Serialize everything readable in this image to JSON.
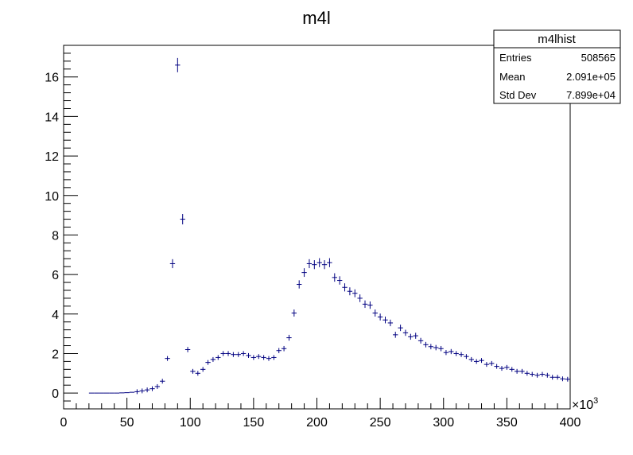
{
  "chart_data": {
    "type": "scatter",
    "title": "m4l",
    "xlabel": "",
    "ylabel": "",
    "x_multiplier_label": "×10",
    "x_multiplier_exponent": "3",
    "xlim": [
      0,
      400
    ],
    "ylim": [
      -0.8,
      17.6
    ],
    "x_ticks": [
      0,
      50,
      100,
      150,
      200,
      250,
      300,
      350,
      400
    ],
    "y_ticks": [
      0,
      2,
      4,
      6,
      8,
      10,
      12,
      14,
      16
    ],
    "bin_width": 4,
    "marker_color": "#000080",
    "grid": false,
    "legend": "none",
    "stats_box": {
      "title": "m4lhist",
      "rows": [
        {
          "label": "Entries",
          "value": "508565"
        },
        {
          "label": "Mean",
          "value": "2.091e+05"
        },
        {
          "label": "Std Dev",
          "value": "7.899e+04"
        }
      ],
      "placement": "top-right"
    },
    "series": [
      {
        "x": [
          22,
          26,
          30,
          34,
          38,
          42,
          46,
          50,
          54,
          58,
          62,
          66,
          70,
          74,
          78,
          82,
          86,
          90,
          94,
          98,
          102,
          106,
          110,
          114,
          118,
          122,
          126,
          130,
          134,
          138,
          142,
          146,
          150,
          154,
          158,
          162,
          166,
          170,
          174,
          178,
          182,
          186,
          190,
          194,
          198,
          202,
          206,
          210,
          214,
          218,
          222,
          226,
          230,
          234,
          238,
          242,
          246,
          250,
          254,
          258,
          262,
          266,
          270,
          274,
          278,
          282,
          286,
          290,
          294,
          298,
          302,
          306,
          310,
          314,
          318,
          322,
          326,
          330,
          334,
          338,
          342,
          346,
          350,
          354,
          358,
          362,
          366,
          370,
          374,
          378,
          382,
          386,
          390,
          394,
          398
        ],
        "y": [
          0.0,
          0.0,
          0.0,
          0.0,
          0.0,
          0.0,
          0.01,
          0.02,
          0.04,
          0.07,
          0.11,
          0.16,
          0.22,
          0.33,
          0.6,
          1.75,
          6.55,
          16.6,
          8.8,
          2.2,
          1.1,
          1.0,
          1.2,
          1.55,
          1.7,
          1.8,
          2.0,
          2.0,
          1.95,
          1.95,
          2.0,
          1.9,
          1.8,
          1.85,
          1.8,
          1.75,
          1.8,
          2.15,
          2.25,
          2.8,
          4.05,
          5.5,
          6.1,
          6.55,
          6.5,
          6.6,
          6.5,
          6.6,
          5.85,
          5.7,
          5.35,
          5.15,
          5.05,
          4.8,
          4.5,
          4.45,
          4.05,
          3.85,
          3.7,
          3.55,
          2.95,
          3.3,
          3.05,
          2.85,
          2.9,
          2.65,
          2.45,
          2.35,
          2.3,
          2.25,
          2.05,
          2.1,
          2.0,
          1.95,
          1.85,
          1.7,
          1.6,
          1.65,
          1.45,
          1.5,
          1.35,
          1.25,
          1.3,
          1.2,
          1.1,
          1.1,
          1.0,
          0.95,
          0.9,
          0.95,
          0.9,
          0.8,
          0.8,
          0.72,
          0.7
        ]
      }
    ]
  }
}
